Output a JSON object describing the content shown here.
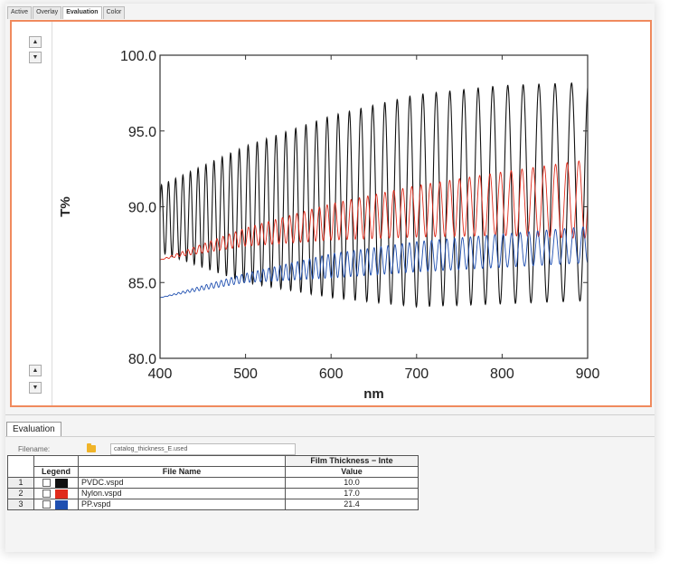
{
  "tabs": [
    "Active",
    "Overlay",
    "Evaluation",
    "Color"
  ],
  "active_tab": "Evaluation",
  "spin_up": "▲",
  "spin_down": "▼",
  "bottom_tab": "Evaluation",
  "filename_label": "Filename:",
  "filename_value": "catalog_thickness_E.used",
  "table": {
    "group_header": "Film Thickness − Inte",
    "col_legend": "Legend",
    "col_filename": "File Name",
    "col_value": "Value",
    "rows": [
      {
        "num": "1",
        "color": "#111111",
        "file": "PVDC.vspd",
        "value": "10.0"
      },
      {
        "num": "2",
        "color": "#e02b1b",
        "file": "Nylon.vspd",
        "value": "17.0"
      },
      {
        "num": "3",
        "color": "#1f4fb0",
        "file": "PP.vspd",
        "value": "21.4"
      }
    ]
  },
  "chart_data": {
    "type": "line",
    "xlabel": "nm",
    "ylabel": "T%",
    "xlim": [
      400,
      900
    ],
    "ylim": [
      80.0,
      100.0
    ],
    "xticks": [
      "400",
      "500",
      "600",
      "700",
      "800",
      "900"
    ],
    "yticks": [
      "80.0",
      "85.0",
      "90.0",
      "95.0",
      "100.0"
    ],
    "grid": false,
    "series": [
      {
        "name": "PVDC.vspd",
        "color": "#111111",
        "x": [
          400,
          500,
          600,
          700,
          800,
          900
        ],
        "y_center": [
          89.2,
          89.5,
          90.0,
          90.4,
          90.8,
          91.0
        ],
        "y_amplitude": [
          2.2,
          4.5,
          6.0,
          7.0,
          7.2,
          7.2
        ],
        "fringe_period_start_nm": 8,
        "fringe_period_end_nm": 20
      },
      {
        "name": "Nylon.vspd",
        "color": "#e02b1b",
        "x": [
          400,
          500,
          600,
          700,
          800,
          900
        ],
        "y_center": [
          86.5,
          88.0,
          89.0,
          89.7,
          90.2,
          90.5
        ],
        "y_amplitude": [
          0.0,
          0.6,
          1.2,
          1.7,
          2.1,
          2.6
        ],
        "fringe_period_start_nm": 6,
        "fringe_period_end_nm": 14
      },
      {
        "name": "PP.vspd",
        "color": "#1f4fb0",
        "x": [
          400,
          500,
          600,
          700,
          800,
          900
        ],
        "y_center": [
          84.0,
          85.3,
          86.1,
          86.7,
          87.1,
          87.5
        ],
        "y_amplitude": [
          0.0,
          0.3,
          0.8,
          1.0,
          1.1,
          1.2
        ],
        "fringe_period_start_nm": 5,
        "fringe_period_end_nm": 11
      }
    ]
  }
}
